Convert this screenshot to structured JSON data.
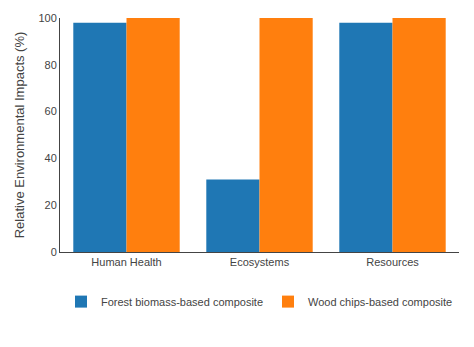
{
  "chart_data": {
    "type": "bar",
    "categories": [
      "Human Health",
      "Ecosystems",
      "Resources"
    ],
    "series": [
      {
        "name": "Forest biomass-based composite",
        "values": [
          98,
          31,
          98
        ]
      },
      {
        "name": "Wood chips-based composite",
        "values": [
          100,
          100,
          100
        ]
      }
    ],
    "ylabel": "Relative Environmental Impacts (%)",
    "ylim": [
      0,
      100
    ],
    "yticks": [
      0,
      20,
      40,
      60,
      80,
      100
    ],
    "grid": false,
    "legend": "bottom"
  }
}
